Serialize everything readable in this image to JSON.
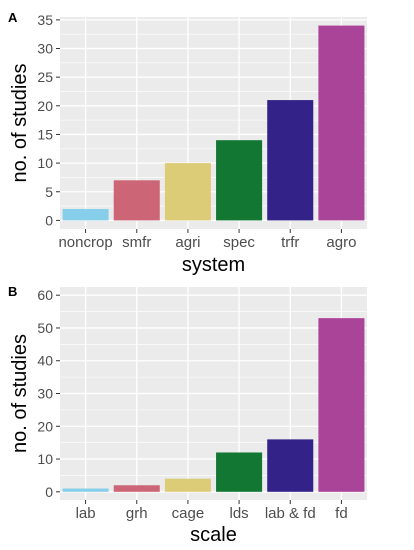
{
  "chart_data": [
    {
      "panel": "A",
      "type": "bar",
      "xlabel": "system",
      "ylabel": "no. of studies",
      "ylim": [
        -1.5,
        35.5
      ],
      "yticks": [
        0,
        5,
        10,
        15,
        20,
        25,
        30,
        35
      ],
      "categories": [
        "noncrop",
        "smfr",
        "agri",
        "spec",
        "trfr",
        "agro"
      ],
      "values": [
        2,
        7,
        10,
        14,
        21,
        34
      ],
      "colors": [
        "#87ceeb",
        "#cc6677",
        "#ddcc77",
        "#117733",
        "#332288",
        "#aa4499"
      ],
      "grid": true,
      "background": "#ebebeb"
    },
    {
      "panel": "B",
      "type": "bar",
      "xlabel": "scale",
      "ylabel": "no. of studies",
      "ylim": [
        -2.5,
        62.5
      ],
      "yticks": [
        0,
        10,
        20,
        30,
        40,
        50,
        60
      ],
      "categories": [
        "lab",
        "grh",
        "cage",
        "lds",
        "lab & fd",
        "fd"
      ],
      "values": [
        1,
        2,
        4,
        12,
        16,
        53
      ],
      "colors": [
        "#87ceeb",
        "#cc6677",
        "#ddcc77",
        "#117733",
        "#332288",
        "#aa4499"
      ],
      "grid": true,
      "background": "#ebebeb"
    }
  ]
}
